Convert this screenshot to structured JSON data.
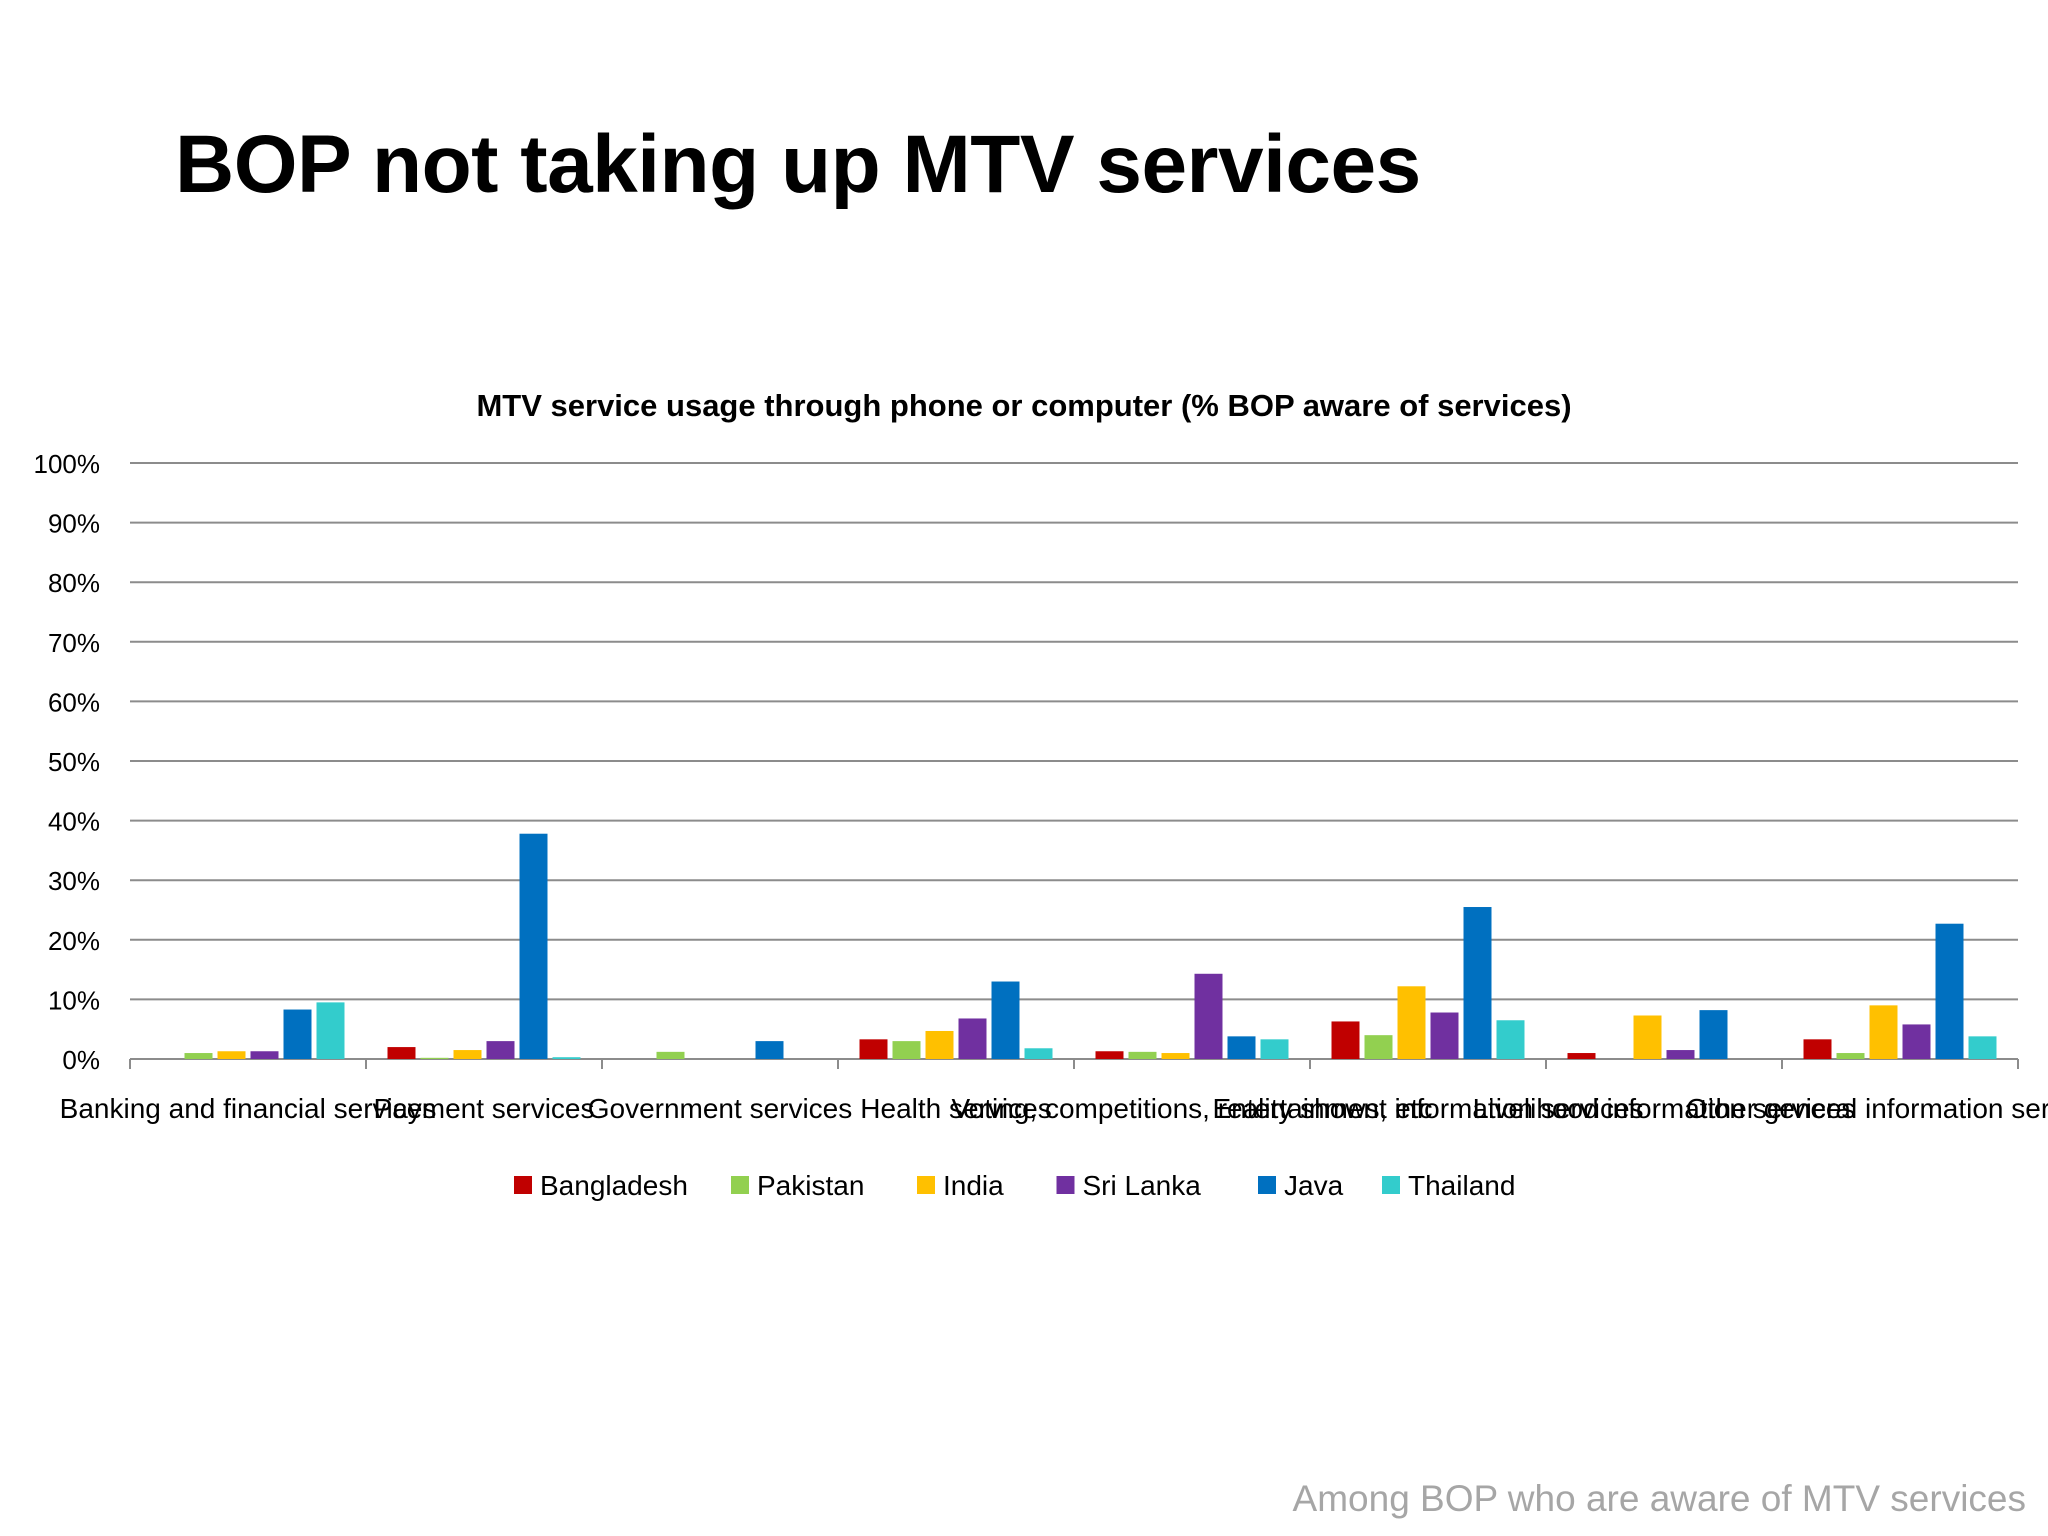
{
  "slide": {
    "title": "BOP not taking up MTV services",
    "footnote": "Among BOP who are aware of MTV services"
  },
  "chart_data": {
    "type": "bar",
    "title": "MTV service usage through phone or computer (% BOP aware of services)",
    "xlabel": "",
    "ylabel": "",
    "ylim": [
      0,
      100
    ],
    "yticks": [
      "0%",
      "10%",
      "20%",
      "30%",
      "40%",
      "50%",
      "60%",
      "70%",
      "80%",
      "90%",
      "100%"
    ],
    "grid": true,
    "legend": "bottom",
    "categories": [
      "Banking and financial services",
      "Payment services",
      "Government services",
      "Health services",
      "Voting, competitions, reality shows, etc",
      "Entertainment information services",
      "Livelihood information services",
      "Other general information services"
    ],
    "series": [
      {
        "name": "Bangladesh",
        "color": "#c00000",
        "values": [
          0,
          2.0,
          0,
          3.3,
          1.3,
          6.3,
          1.0,
          3.3
        ]
      },
      {
        "name": "Pakistan",
        "color": "#92d050",
        "values": [
          1.0,
          0.2,
          1.2,
          3.0,
          1.2,
          4.0,
          0,
          1.0
        ]
      },
      {
        "name": "India",
        "color": "#ffc000",
        "values": [
          1.3,
          1.5,
          0,
          4.7,
          1.0,
          12.2,
          7.3,
          9.0
        ]
      },
      {
        "name": "Sri Lanka",
        "color": "#7030a0",
        "values": [
          1.3,
          3.0,
          0,
          6.8,
          14.3,
          7.8,
          1.5,
          5.8
        ]
      },
      {
        "name": "Java",
        "color": "#0070c0",
        "values": [
          8.3,
          37.8,
          3.0,
          13.0,
          3.8,
          25.5,
          8.2,
          22.7
        ]
      },
      {
        "name": "Thailand",
        "color": "#33cccc",
        "values": [
          9.5,
          0.3,
          0,
          1.8,
          3.3,
          6.5,
          0,
          3.8
        ]
      }
    ]
  }
}
